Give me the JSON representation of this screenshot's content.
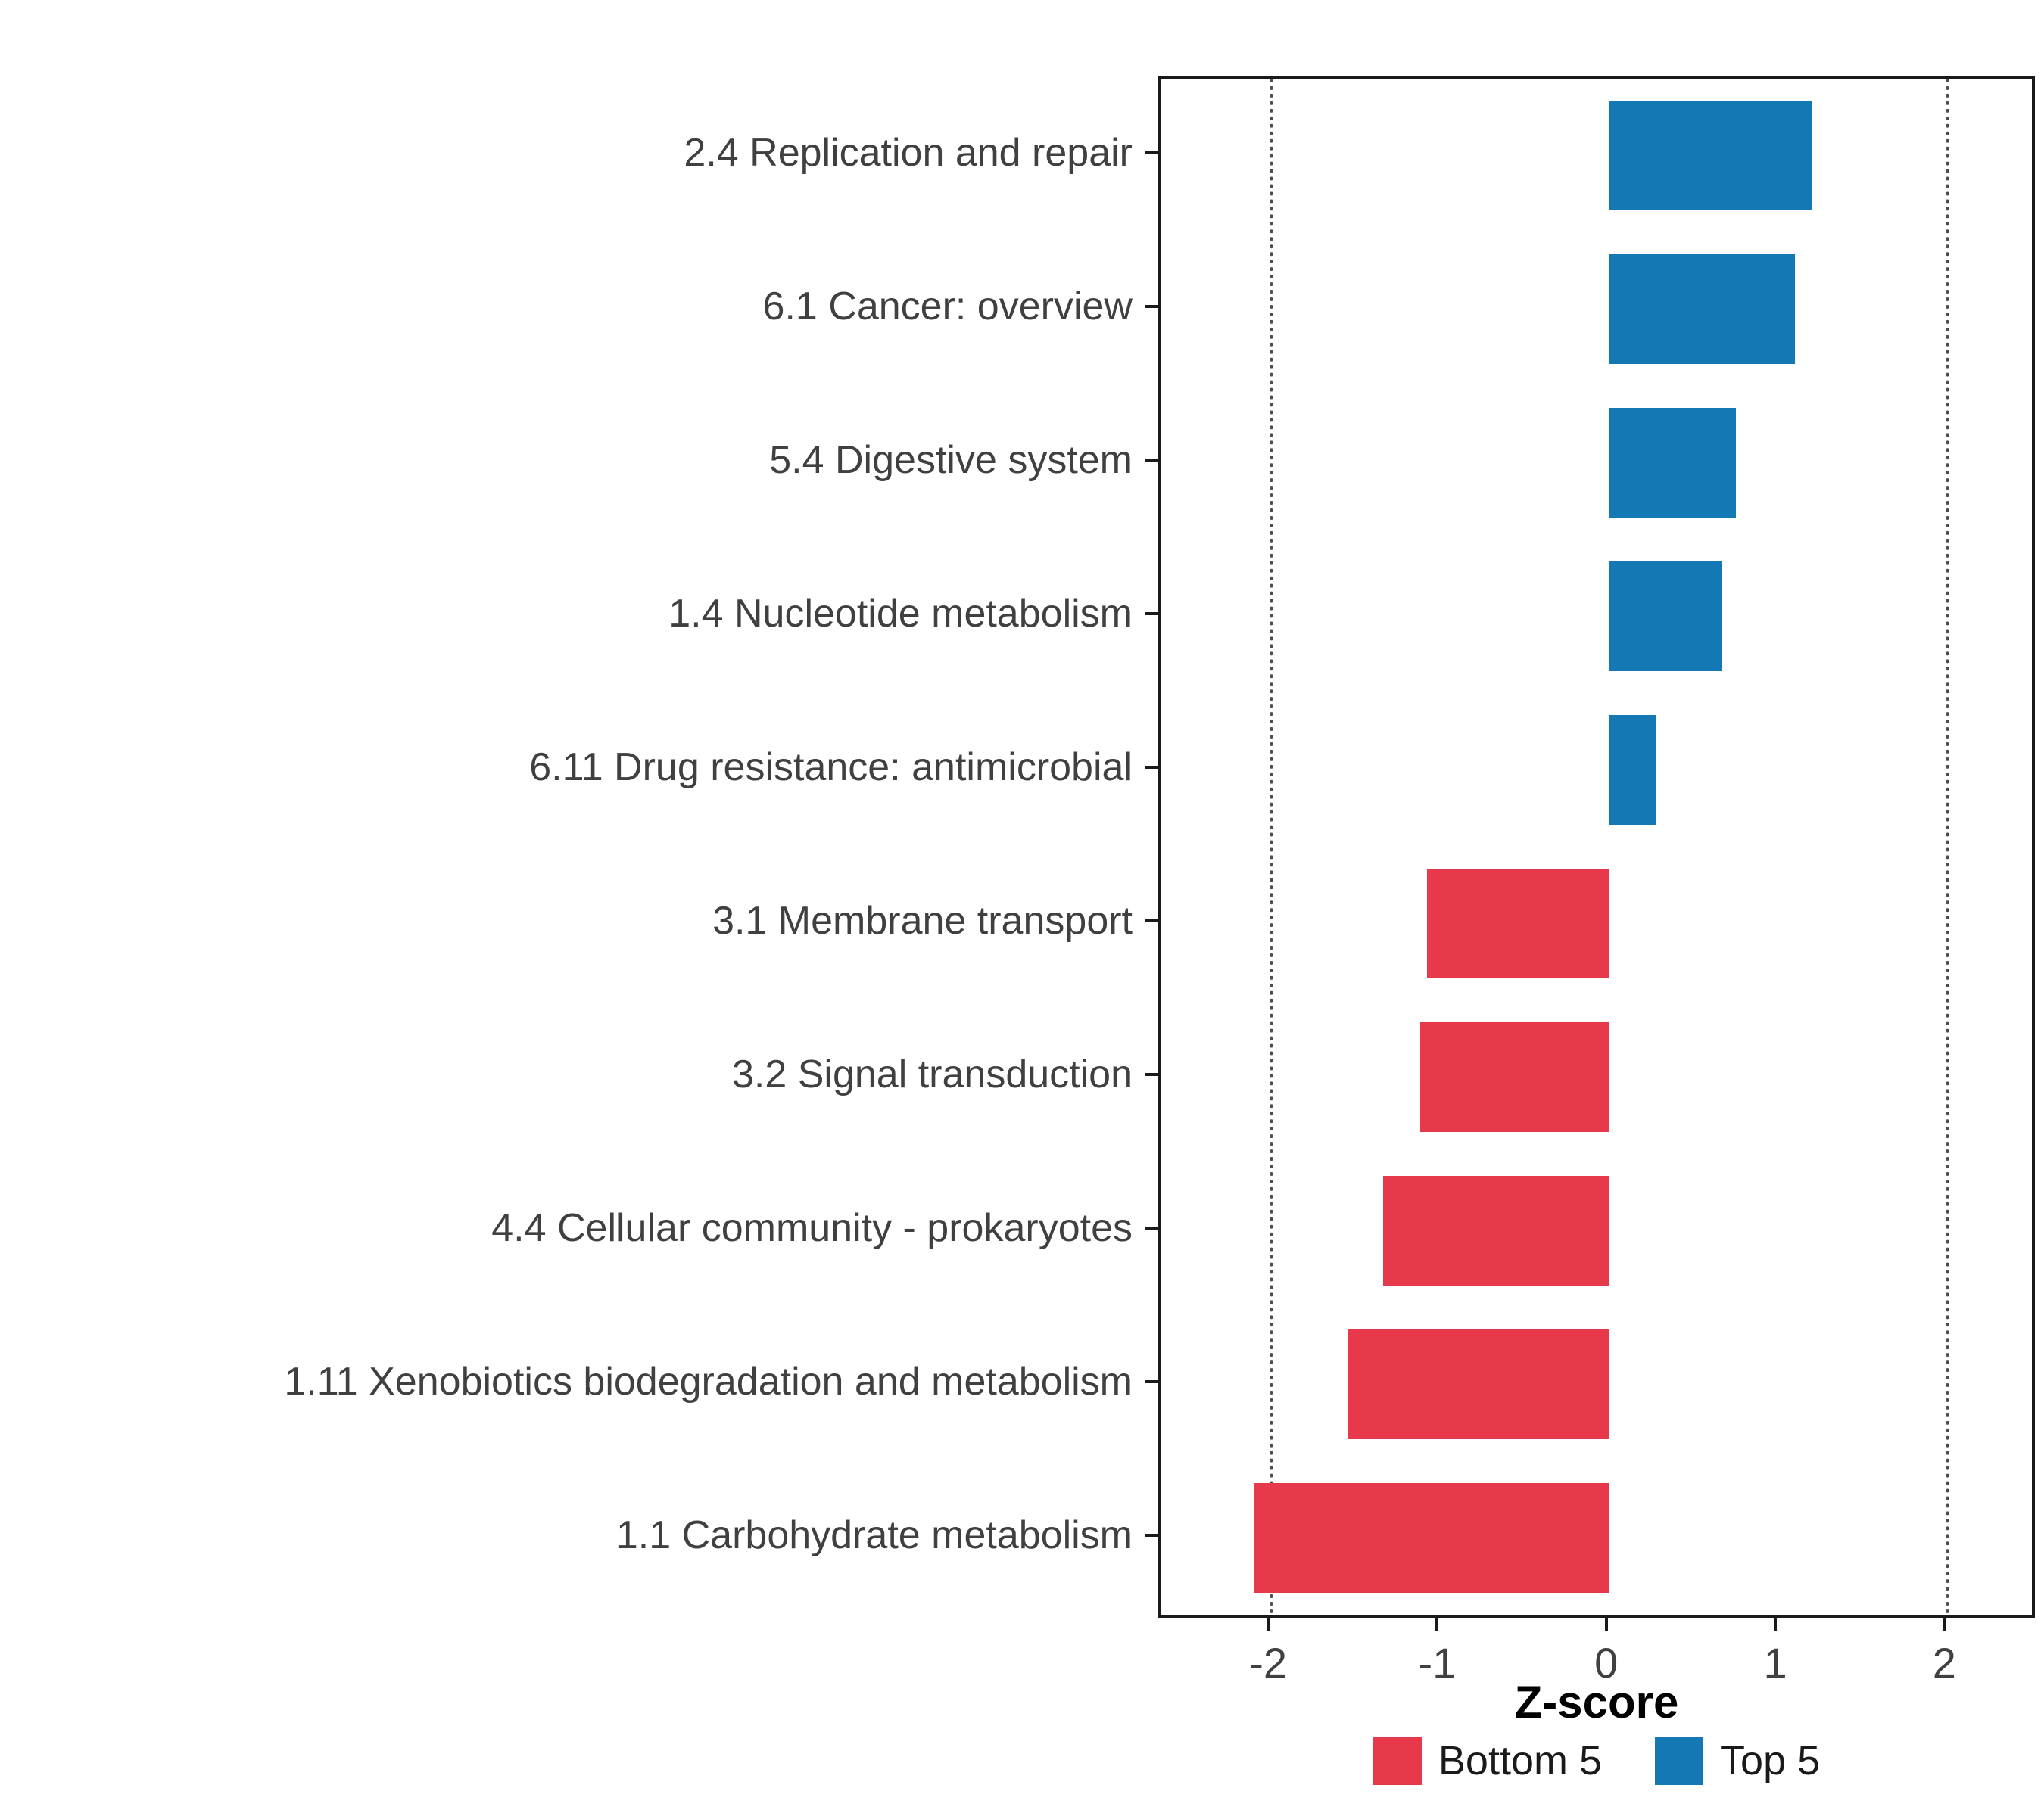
{
  "chart_data": {
    "type": "bar",
    "orientation": "horizontal",
    "title": "",
    "xlabel": "Z-score",
    "ylabel": "",
    "categories": [
      "2.4 Replication and repair",
      "6.1 Cancer: overview",
      "5.4 Digestive system",
      "1.4 Nucleotide metabolism",
      "6.11 Drug resistance: antimicrobial",
      "3.1 Membrane transport",
      "3.2 Signal transduction",
      "4.4 Cellular community - prokaryotes",
      "1.11 Xenobiotics biodegradation and metabolism",
      "1.1 Carbohydrate metabolism"
    ],
    "values": [
      1.2,
      1.1,
      0.75,
      0.67,
      0.28,
      -1.08,
      -1.12,
      -1.34,
      -1.55,
      -2.1
    ],
    "groups": [
      "Top 5",
      "Top 5",
      "Top 5",
      "Top 5",
      "Top 5",
      "Bottom 5",
      "Bottom 5",
      "Bottom 5",
      "Bottom 5",
      "Bottom 5"
    ],
    "xlim": [
      -2.65,
      2.5
    ],
    "xticks": [
      -2,
      -1,
      0,
      1,
      2
    ],
    "xtick_labels": [
      "-2",
      "-1",
      "0",
      "1",
      "2"
    ],
    "reference_lines": [
      -2,
      2
    ],
    "grid": "dotted reference lines only",
    "legend_position": "bottom",
    "colors": {
      "Bottom 5": "#E8394C",
      "Top 5": "#1478B5"
    },
    "legend": {
      "items": [
        {
          "label": "Bottom 5",
          "color": "#E8394C"
        },
        {
          "label": "Top 5",
          "color": "#1478B5"
        }
      ]
    }
  }
}
